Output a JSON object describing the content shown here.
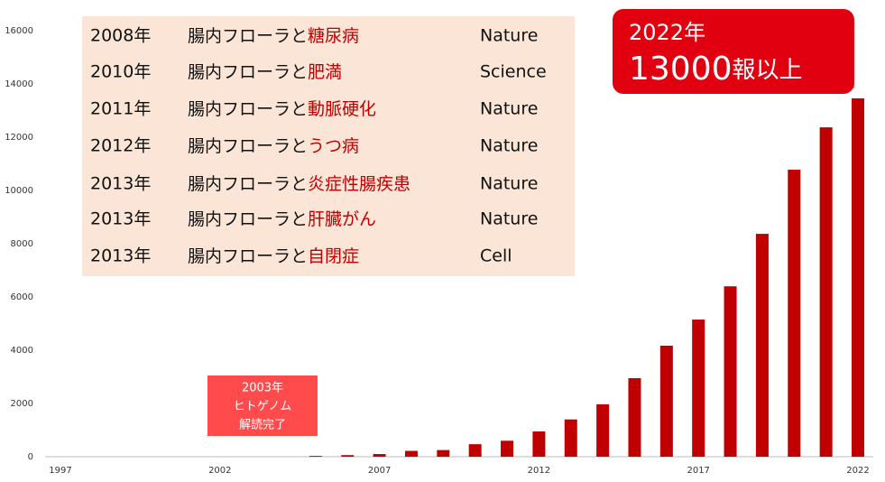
{
  "chart_data": {
    "type": "bar",
    "x": [
      2005,
      2006,
      2007,
      2008,
      2009,
      2010,
      2011,
      2012,
      2013,
      2014,
      2015,
      2016,
      2017,
      2018,
      2019,
      2020,
      2021,
      2022
    ],
    "values": [
      30,
      60,
      100,
      220,
      250,
      470,
      600,
      950,
      1400,
      1970,
      2950,
      4170,
      5150,
      6400,
      8370,
      10780,
      12370,
      13460
    ],
    "color": "#c00000",
    "xlim": [
      1997,
      2022
    ],
    "xticks": [
      1997,
      2002,
      2007,
      2012,
      2017,
      2022
    ],
    "ylim": [
      0,
      16000
    ],
    "yticks": [
      0,
      2000,
      4000,
      6000,
      8000,
      10000,
      12000,
      14000,
      16000
    ]
  },
  "table": {
    "rows": [
      {
        "year": "2008年",
        "plain": "腸内フローラと",
        "highlight": "糖尿病",
        "journal": "Nature"
      },
      {
        "year": "2010年",
        "plain": "腸内フローラと",
        "highlight": "肥満",
        "journal": "Science"
      },
      {
        "year": "2011年",
        "plain": "腸内フローラと",
        "highlight": "動脈硬化",
        "journal": "Nature"
      },
      {
        "year": "2012年",
        "plain": "腸内フローラと",
        "highlight": "うつ病",
        "journal": "Nature"
      },
      {
        "year": "2013年",
        "plain": "腸内フローラと",
        "highlight": "炎症性腸疾患",
        "journal": "Nature"
      },
      {
        "year": "2013年",
        "plain": "腸内フローラと",
        "highlight": "肝臓がん",
        "journal": "Nature"
      },
      {
        "year": "2013年",
        "plain": "腸内フローラと",
        "highlight": "自閉症",
        "journal": "Cell"
      }
    ]
  },
  "callout": {
    "year": "2022年",
    "count": "13000",
    "suffix": "報以上"
  },
  "genome_note": {
    "lines": [
      "2003年",
      "ヒトゲノム",
      "解読完了"
    ]
  }
}
